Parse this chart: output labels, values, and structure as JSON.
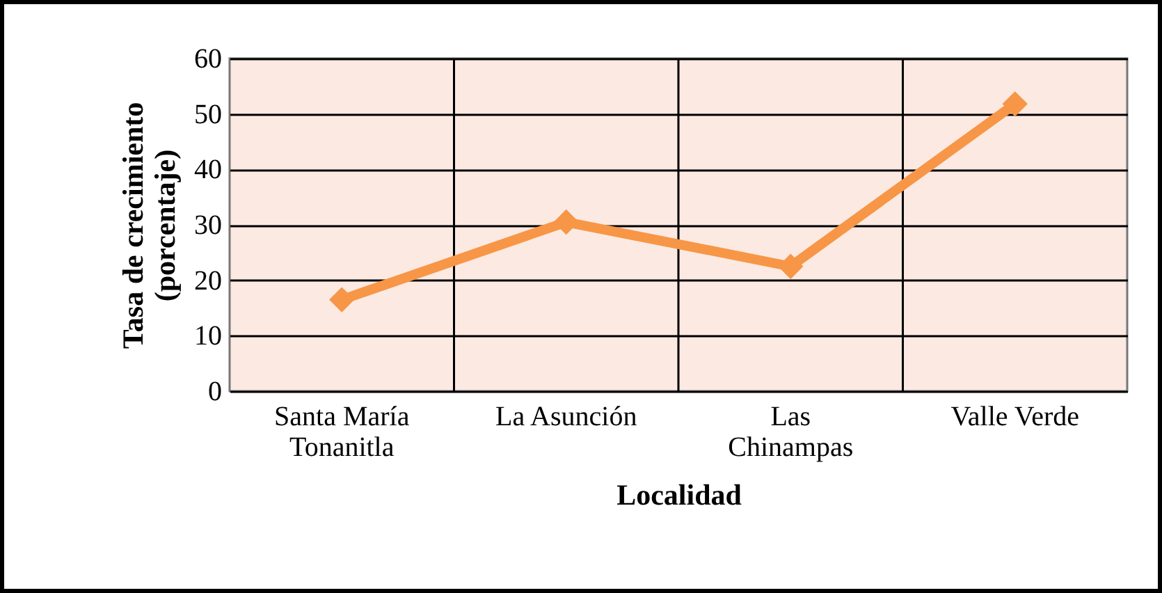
{
  "chart_data": {
    "type": "line",
    "xlabel": "Localidad",
    "ylabel": "Tasa de crecimiento\n(porcentaje)",
    "categories": [
      "Santa María Tonanitla",
      "La Asunción",
      "Las Chinampas",
      "Valle Verde"
    ],
    "series": [
      {
        "color": "#f79646",
        "values": [
          16.5,
          30.5,
          22.5,
          51.8
        ]
      }
    ],
    "ylim": [
      0,
      60
    ],
    "yticks": [
      0,
      10,
      20,
      30,
      40,
      50,
      60
    ],
    "grid": true,
    "marker": "diamond",
    "line_style": "solid"
  }
}
